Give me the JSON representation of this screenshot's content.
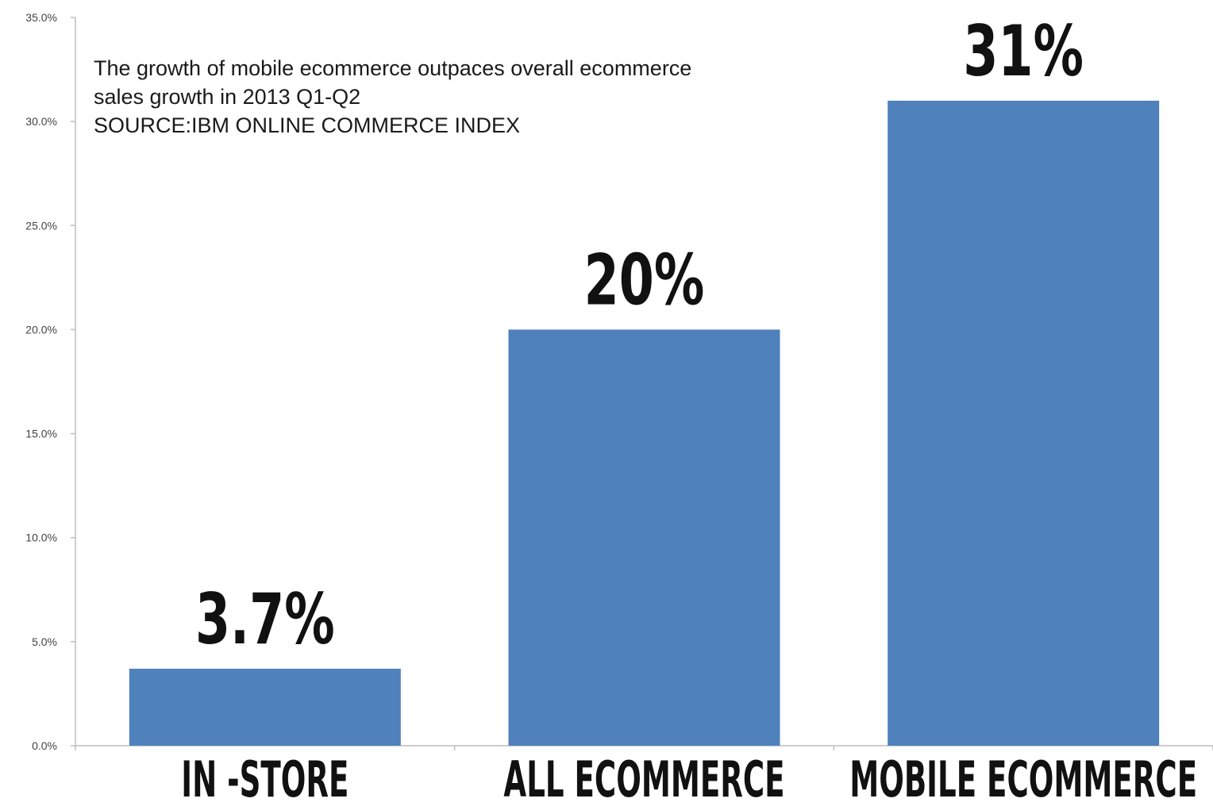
{
  "chart_data": {
    "type": "bar",
    "title_lines": [
      "The growth of mobile ecommerce outpaces overall ecommerce",
      "sales growth in 2013 Q1-Q2",
      "SOURCE:IBM ONLINE COMMERCE INDEX"
    ],
    "categories": [
      "IN -STORE",
      "ALL ECOMMERCE",
      "MOBILE ECOMMERCE"
    ],
    "values": [
      3.7,
      20,
      31
    ],
    "value_labels": [
      "3.7%",
      "20%",
      "31%"
    ],
    "yticks": [
      0,
      5,
      10,
      15,
      20,
      25,
      30,
      35
    ],
    "ytick_labels": [
      "0.0%",
      "5.0%",
      "10.0%",
      "15.0%",
      "20.0%",
      "25.0%",
      "30.0%",
      "35.0%"
    ],
    "ylim": [
      0,
      35
    ],
    "xlabel": "",
    "ylabel": "",
    "grid": false,
    "legend": "none",
    "bar_color": "#4f81bd",
    "axis_color": "#bdbdbd",
    "label_color": "#111111"
  }
}
